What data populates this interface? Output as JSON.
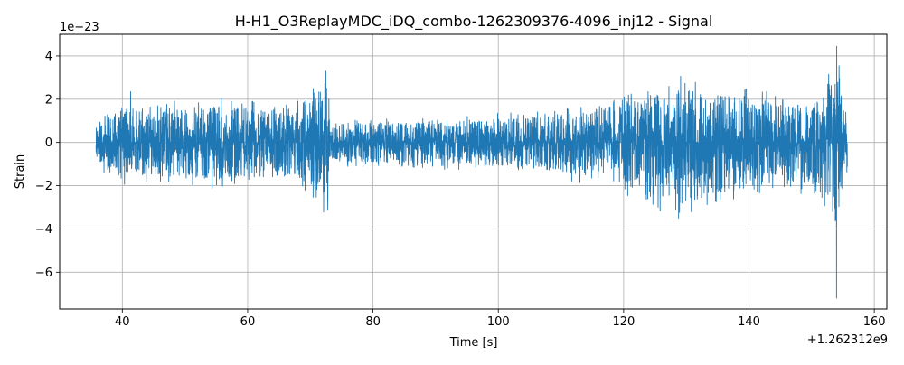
{
  "chart_data": {
    "type": "line",
    "title": "H-H1_O3ReplayMDC_iDQ_combo-1262309376-4096_inj12 - Signal",
    "xlabel": "Time [s]",
    "ylabel": "Strain",
    "x_offset_label": "+1.262312e9",
    "y_scale_label": "1e−23",
    "xlim": [
      30,
      162
    ],
    "ylim": [
      -7.7,
      5.0
    ],
    "x_ticks": [
      40,
      60,
      80,
      100,
      120,
      140,
      160
    ],
    "x_tick_labels": [
      "40",
      "60",
      "80",
      "100",
      "120",
      "140",
      "160"
    ],
    "y_ticks": [
      -6,
      -4,
      -2,
      0,
      2,
      4
    ],
    "y_tick_labels": [
      "−6",
      "−4",
      "−2",
      "0",
      "2",
      "4"
    ],
    "grid": true,
    "line_color": "#1f77b4",
    "x_range": [
      35.8,
      155.7
    ],
    "envelope": {
      "t": [
        35.8,
        38,
        42,
        45,
        50,
        55,
        60,
        65,
        68,
        70,
        71.5,
        72.8,
        73.2,
        76,
        80,
        85,
        90,
        95,
        100,
        105,
        110,
        115,
        120,
        123,
        126,
        129,
        132,
        135,
        138,
        141,
        144,
        147,
        150,
        152,
        153.5,
        154.3,
        155,
        155.7
      ],
      "upper": [
        0.8,
        1.5,
        1.6,
        1.5,
        1.6,
        1.7,
        1.6,
        1.5,
        1.7,
        2.2,
        2.6,
        2.7,
        0.8,
        0.9,
        0.9,
        0.9,
        1.0,
        1.0,
        1.1,
        1.1,
        1.3,
        1.5,
        1.8,
        2.0,
        2.3,
        2.5,
        2.4,
        2.2,
        2.1,
        2.0,
        1.9,
        1.8,
        1.8,
        2.1,
        3.0,
        3.6,
        1.6,
        1.4
      ],
      "lower": [
        -0.8,
        -1.6,
        -1.6,
        -1.6,
        -1.6,
        -1.7,
        -1.6,
        -1.6,
        -1.7,
        -2.1,
        -2.5,
        -2.8,
        -0.8,
        -0.9,
        -0.9,
        -0.9,
        -1.0,
        -1.0,
        -1.1,
        -1.1,
        -1.4,
        -1.6,
        -1.9,
        -2.3,
        -2.7,
        -2.8,
        -2.7,
        -2.4,
        -2.2,
        -2.0,
        -1.9,
        -1.9,
        -2.0,
        -2.5,
        -3.2,
        -5.0,
        -1.8,
        -1.5
      ]
    },
    "peaks": [
      {
        "x": 41.3,
        "y": 2.35
      },
      {
        "x": 72.5,
        "y": 3.3
      },
      {
        "x": 72.8,
        "y": -3.1
      },
      {
        "x": 128.8,
        "y": -3.5
      },
      {
        "x": 154.0,
        "y": 4.45
      },
      {
        "x": 154.0,
        "y": -7.2
      }
    ]
  }
}
